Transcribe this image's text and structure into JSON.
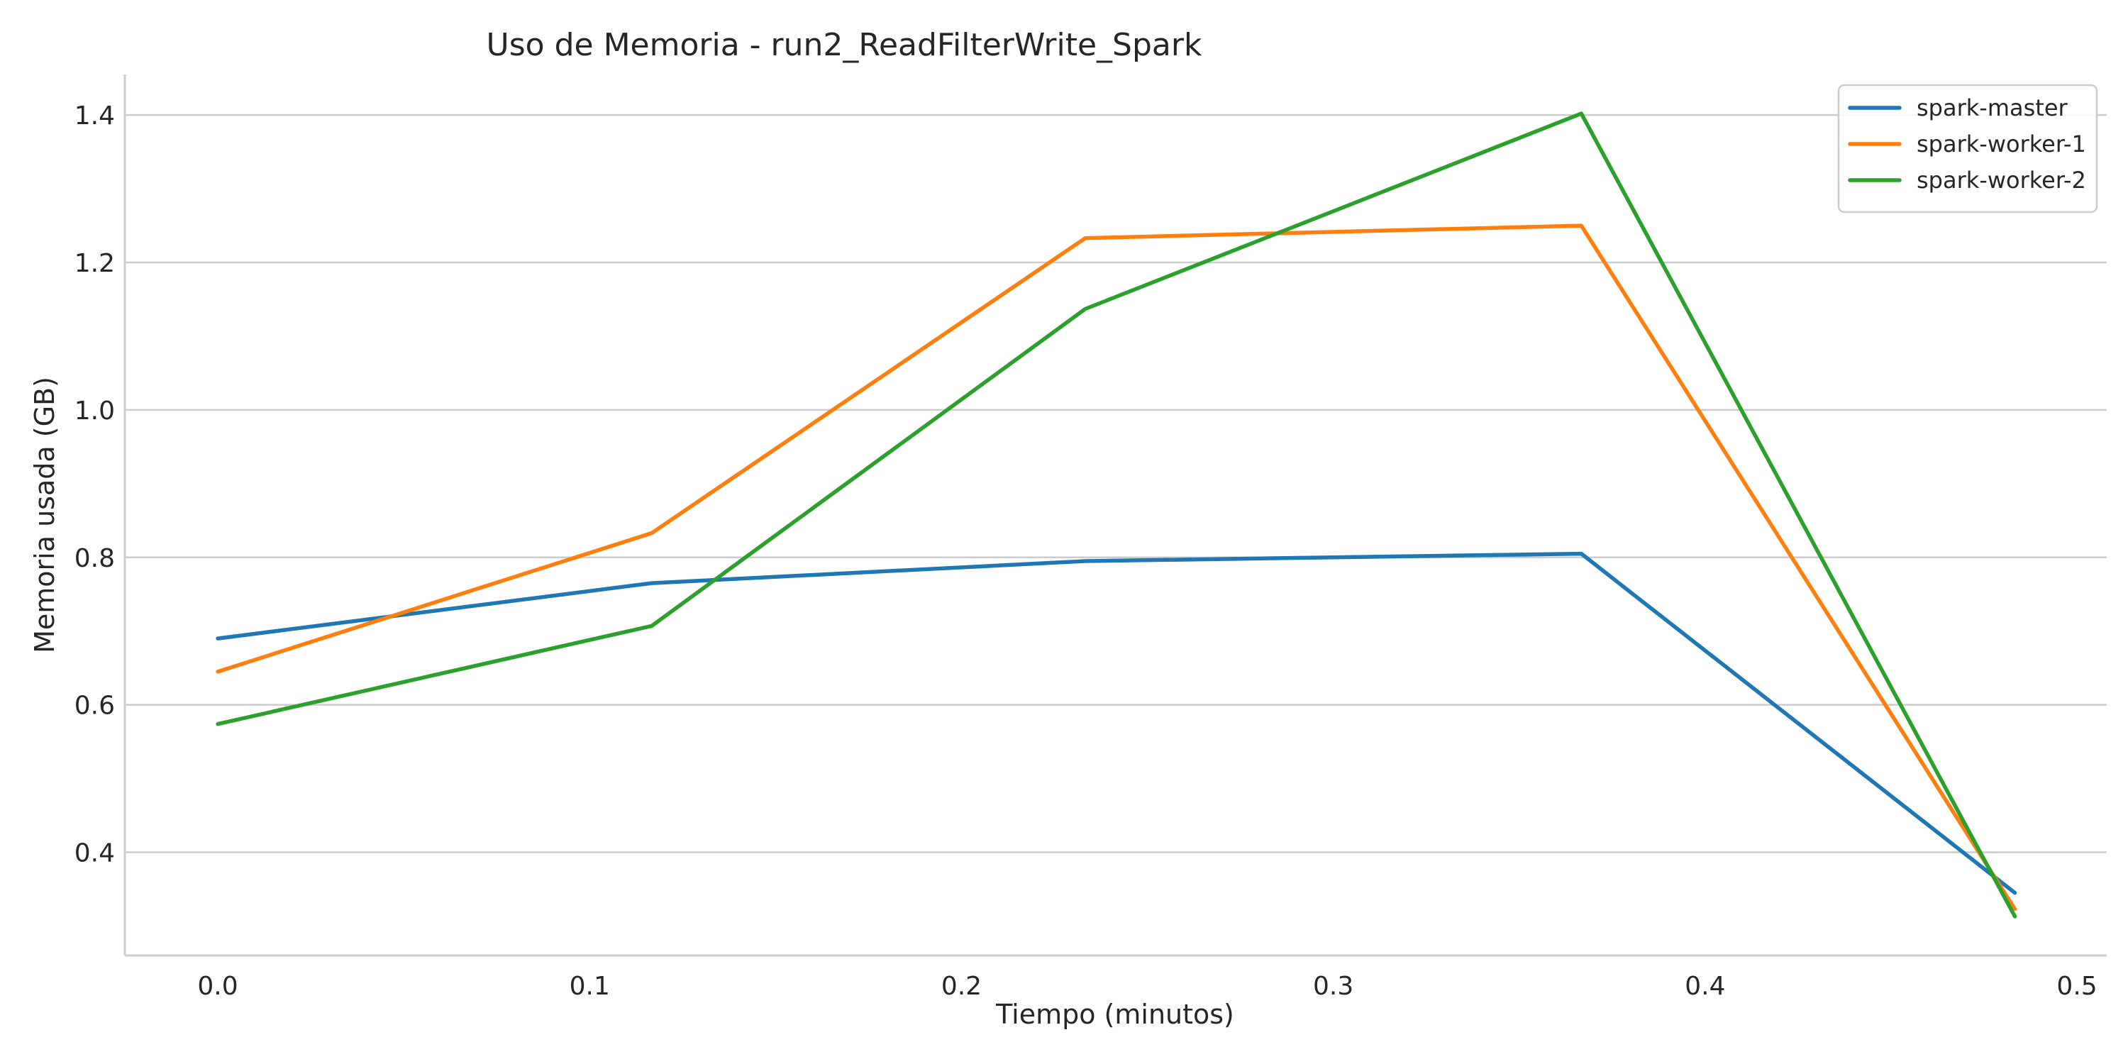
{
  "chart_data": {
    "type": "line",
    "title": "Uso de Memoria - run2_ReadFilterWrite_Spark",
    "xlabel": "Tiempo (minutos)",
    "ylabel": "Memoria usada (GB)",
    "xlim": [
      -0.025,
      0.508
    ],
    "ylim": [
      0.26,
      1.455
    ],
    "xticks": [
      0.0,
      0.1,
      0.2,
      0.3,
      0.4,
      0.5
    ],
    "xtick_labels": [
      "0.0",
      "0.1",
      "0.2",
      "0.3",
      "0.4",
      "0.5"
    ],
    "yticks": [
      0.4,
      0.6,
      0.8,
      1.0,
      1.2,
      1.4
    ],
    "ytick_labels": [
      "0.4",
      "0.6",
      "0.8",
      "1.0",
      "1.2",
      "1.4"
    ],
    "grid": "horizontal",
    "legend_position": "top-right",
    "x": [
      0.0,
      0.1167,
      0.2333,
      0.3667,
      0.4833
    ],
    "series": [
      {
        "name": "spark-master",
        "color": "#1f77b4",
        "values": [
          0.69,
          0.765,
          0.795,
          0.805,
          0.345
        ]
      },
      {
        "name": "spark-worker-1",
        "color": "#ff7f0e",
        "values": [
          0.645,
          0.833,
          1.233,
          1.25,
          0.323
        ]
      },
      {
        "name": "spark-worker-2",
        "color": "#2ca02c",
        "values": [
          0.574,
          0.707,
          1.137,
          1.402,
          0.313
        ]
      }
    ]
  }
}
